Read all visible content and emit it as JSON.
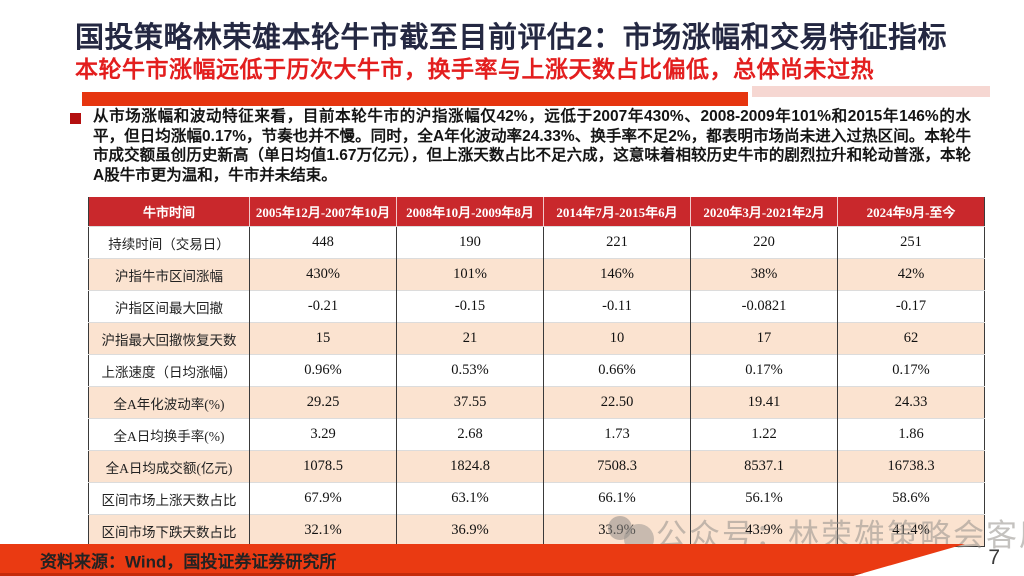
{
  "slide": {
    "title": "国投策略林荣雄本轮牛市截至目前评估2：市场涨幅和交易特征指标",
    "subtitle": "本轮牛市涨幅远低于历次大牛市，换手率与上涨天数占比偏低，总体尚未过热",
    "paragraph": "从市场涨幅和波动特征来看，目前本轮牛市的沪指涨幅仅42%，远低于2007年430%、2008-2009年101%和2015年146%的水平，但日均涨幅0.17%，节奏也并不慢。同时，全A年化波动率24.33%、换手率不足2%，都表明市场尚未进入过热区间。本轮牛市成交额虽创历史新高（单日均值1.67万亿元），但上涨天数占比不足六成，这意味着相较历史牛市的剧烈拉升和轮动普涨，本轮A股牛市更为温和，牛市并未结束。",
    "watermark": "公众号：林荣雄策略会客厅",
    "footer_source": "资料来源：Wind，国投证券证券研究所",
    "page_number": "7"
  },
  "table": {
    "columns": [
      "牛市时间",
      "2005年12月-2007年10月",
      "2008年10月-2009年8月",
      "2014年7月-2015年6月",
      "2020年3月-2021年2月",
      "2024年9月-至今"
    ],
    "rows": [
      {
        "label": "持续时间（交易日）",
        "values": [
          "448",
          "190",
          "221",
          "220",
          "251"
        ]
      },
      {
        "label": "沪指牛市区间涨幅",
        "values": [
          "430%",
          "101%",
          "146%",
          "38%",
          "42%"
        ]
      },
      {
        "label": "沪指区间最大回撤",
        "values": [
          "-0.21",
          "-0.15",
          "-0.11",
          "-0.0821",
          "-0.17"
        ]
      },
      {
        "label": "沪指最大回撤恢复天数",
        "values": [
          "15",
          "21",
          "10",
          "17",
          "62"
        ]
      },
      {
        "label": "上涨速度（日均涨幅）",
        "values": [
          "0.96%",
          "0.53%",
          "0.66%",
          "0.17%",
          "0.17%"
        ]
      },
      {
        "label": "全A年化波动率(%)",
        "values": [
          "29.25",
          "37.55",
          "22.50",
          "19.41",
          "24.33"
        ]
      },
      {
        "label": "全A日均换手率(%)",
        "values": [
          "3.29",
          "2.68",
          "1.73",
          "1.22",
          "1.86"
        ]
      },
      {
        "label": "全A日均成交额(亿元)",
        "values": [
          "1078.5",
          "1824.8",
          "7508.3",
          "8537.1",
          "16738.3"
        ]
      },
      {
        "label": "区间市场上涨天数占比",
        "values": [
          "67.9%",
          "63.1%",
          "66.1%",
          "56.1%",
          "58.6%"
        ]
      },
      {
        "label": "区间市场下跌天数占比",
        "values": [
          "32.1%",
          "36.9%",
          "33.9%",
          "43.9%",
          "41.4%"
        ]
      }
    ]
  },
  "colors": {
    "title_navy": "#242842",
    "subtitle_red": "#e31e1e",
    "accent_bar_red": "#e6350f",
    "accent_bar_pink": "#f6d7d2",
    "table_header_red": "#c9282c",
    "table_row_peach": "#fbe3d0",
    "footer_band_red": "#ea3a12",
    "bullet_red": "#b40f0f"
  }
}
